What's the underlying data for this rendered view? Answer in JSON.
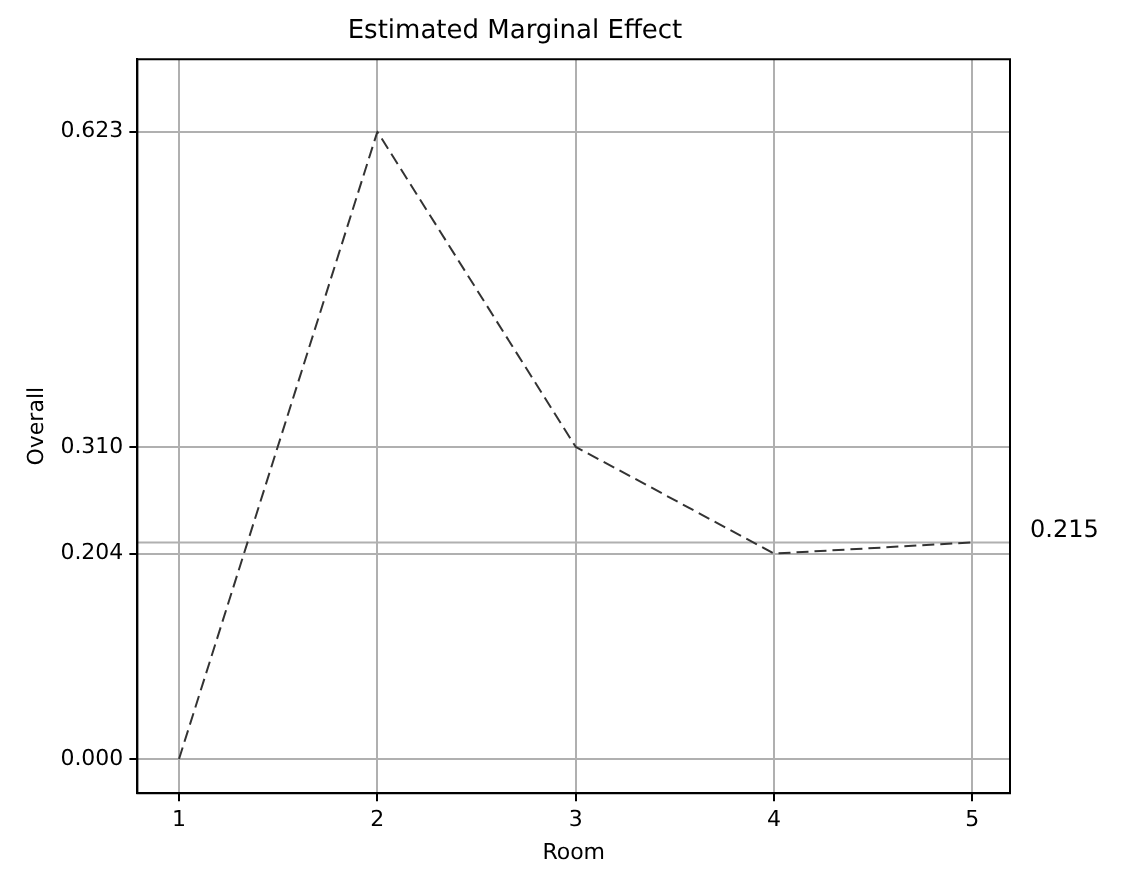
{
  "chart_data": {
    "type": "line",
    "title": "Estimated Marginal Effect",
    "xlabel": "Room",
    "ylabel": "Overall",
    "x": [
      1,
      2,
      3,
      4,
      5
    ],
    "series": [
      {
        "color": "#333333",
        "values": [
          0.0,
          0.623,
          0.31,
          0.204,
          0.215
        ]
      }
    ],
    "xlim": [
      0.79,
      5.19
    ],
    "xticks": [
      1,
      2,
      3,
      4,
      5
    ],
    "ylim": [
      -0.034,
      0.695
    ],
    "yticks": [
      {
        "value": 0,
        "label": "0.000"
      },
      {
        "value": 0.204,
        "label": "0.204"
      },
      {
        "value": 0.31,
        "label": "0.310"
      },
      {
        "value": 0.623,
        "label": "0.623"
      }
    ],
    "ref_lines": [
      {
        "axis": "y",
        "value": 0.215,
        "label": "0.215",
        "color": "#b0b0b0"
      }
    ],
    "grid": true,
    "legend": false,
    "marker": "none",
    "line_style": "dashed"
  }
}
